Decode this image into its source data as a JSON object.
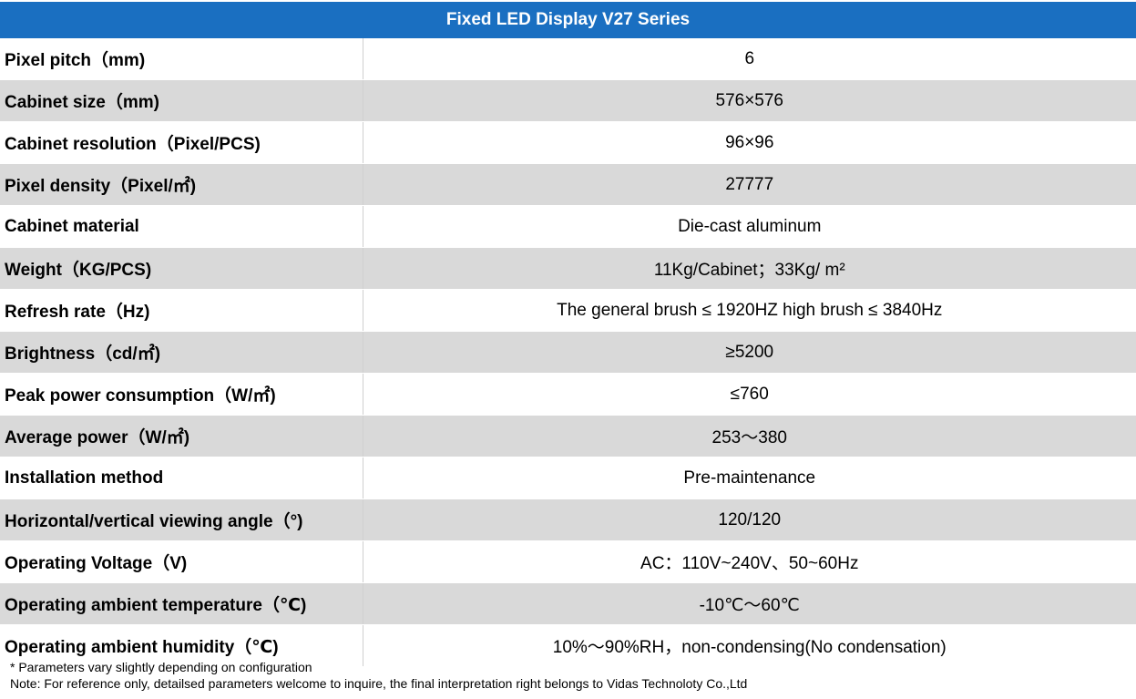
{
  "table": {
    "title": "Fixed LED Display V27 Series",
    "rows": [
      {
        "param": "Pixel pitch（mm)",
        "value": "6"
      },
      {
        "param": "Cabinet size（mm)",
        "value": "576×576"
      },
      {
        "param": "Cabinet resolution（Pixel/PCS)",
        "value": "96×96"
      },
      {
        "param": "Pixel density（Pixel/㎡)",
        "value": "27777"
      },
      {
        "param": "Cabinet material",
        "value": "Die-cast aluminum"
      },
      {
        "param": "Weight（KG/PCS)",
        "value": "11Kg/Cabinet；33Kg/ m²"
      },
      {
        "param": "Refresh rate（Hz)",
        "value": "The general brush ≤ 1920HZ high brush ≤ 3840Hz"
      },
      {
        "param": "Brightness（cd/㎡)",
        "value": "≥5200"
      },
      {
        "param": "Peak power consumption（W/㎡)",
        "value": "≤760"
      },
      {
        "param": "Average power（W/㎡)",
        "value": "253～380"
      },
      {
        "param": "Installation method",
        "value": "Pre-maintenance"
      },
      {
        "param": "Horizontal/vertical viewing angle（°)",
        "value": "120/120"
      },
      {
        "param": "Operating Voltage（V)",
        "value": "AC：110V~240V、50~60Hz"
      },
      {
        "param": "Operating ambient temperature（℃)",
        "value": "-10℃～60℃"
      },
      {
        "param": "Operating ambient humidity（℃)",
        "value": "10%～90%RH，non-condensing(No condensation)"
      }
    ]
  },
  "notes": {
    "line1": "* Parameters vary slightly depending on configuration",
    "line2": "Note: For reference only, detailsed parameters welcome to inquire, the final interpretation right belongs to Vidas Technoloty Co.,Ltd"
  },
  "colors": {
    "header_bg": "#1a6fc1",
    "header_text": "#ffffff",
    "row_alt_bg": "#d9d9d9"
  }
}
